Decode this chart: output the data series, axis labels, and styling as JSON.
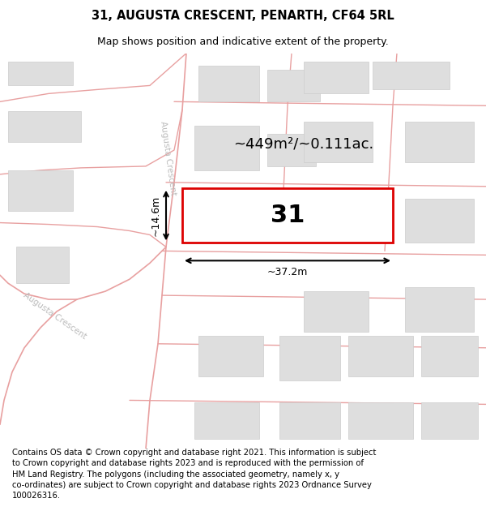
{
  "title": "31, AUGUSTA CRESCENT, PENARTH, CF64 5RL",
  "subtitle": "Map shows position and indicative extent of the property.",
  "footer": "Contains OS data © Crown copyright and database right 2021. This information is subject\nto Crown copyright and database rights 2023 and is reproduced with the permission of\nHM Land Registry. The polygons (including the associated geometry, namely x, y\nco-ordinates) are subject to Crown copyright and database rights 2023 Ordnance Survey\n100026316.",
  "background_color": "#ffffff",
  "map_bg": "#f7f7f7",
  "road_color": "#e8a0a0",
  "building_fill": "#dedede",
  "building_edge": "#cccccc",
  "highlight_fill": "#ffffff",
  "highlight_edge": "#dd0000",
  "label_color": "#bbbbbb",
  "area_text": "~449m²/~0.111ac.",
  "plot_number": "31",
  "dim_width": "~37.2m",
  "dim_height": "~14.6m",
  "title_fontsize": 10.5,
  "subtitle_fontsize": 9,
  "footer_fontsize": 7.2,
  "road_label": "Augusta Crescent"
}
